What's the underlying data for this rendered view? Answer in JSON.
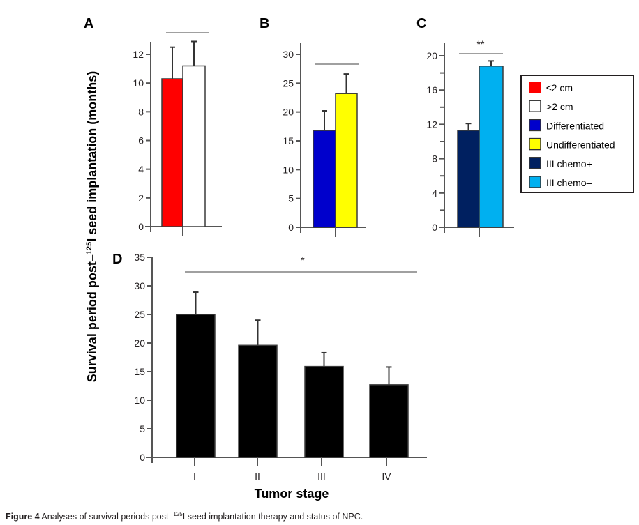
{
  "figure": {
    "y_axis_title": "Survival period post–",
    "y_axis_title_sup": "125",
    "y_axis_title_rest": "I seed implantation (months)",
    "caption_label": "Figure 4",
    "caption_text_pre": " Analyses of survival periods post–",
    "caption_sup": "125",
    "caption_text_post": "I seed implantation therapy and status of NPC."
  },
  "legend": {
    "items": [
      {
        "label": "≤2 cm",
        "color": "#ff0000",
        "text_color": "#000000"
      },
      {
        "label": ">2 cm",
        "color": "#ffffff",
        "text_color": "#ff0000"
      },
      {
        "label": "Differentiated",
        "color": "#0000cc",
        "text_color": "#000000"
      },
      {
        "label": "Undifferentiated",
        "color": "#ffff00",
        "text_color": "#000000"
      },
      {
        "label": "III chemo+",
        "color": "#002060",
        "text_color": "#000000"
      },
      {
        "label": "III chemo–",
        "color": "#00b0f0",
        "text_color": "#000000"
      }
    ]
  },
  "chart_data": [
    {
      "panel": "A",
      "type": "bar",
      "title": "A",
      "ylabel": "Survival period post–125I seed implantation (months)",
      "ylim": [
        0,
        12
      ],
      "yticks": [
        0,
        2,
        4,
        6,
        8,
        10,
        12
      ],
      "series": [
        {
          "name": "≤2 cm",
          "value": 10.3,
          "error_upper": 12.5,
          "color": "#ff0000"
        },
        {
          "name": ">2 cm",
          "value": 11.2,
          "error_upper": 12.9,
          "color": "#ffffff"
        }
      ],
      "significance": ""
    },
    {
      "panel": "B",
      "type": "bar",
      "title": "B",
      "ylim": [
        0,
        30
      ],
      "yticks": [
        0,
        5,
        10,
        15,
        20,
        25,
        30
      ],
      "series": [
        {
          "name": "Differentiated",
          "value": 16.8,
          "error_upper": 20.2,
          "color": "#0000cc"
        },
        {
          "name": "Undifferentiated",
          "value": 23.2,
          "error_upper": 26.6,
          "color": "#ffff00"
        }
      ],
      "significance": ""
    },
    {
      "panel": "C",
      "type": "bar",
      "title": "C",
      "ylim": [
        0,
        20
      ],
      "yticks": [
        0,
        4,
        8,
        12,
        16,
        20
      ],
      "series": [
        {
          "name": "III chemo+",
          "value": 11.3,
          "error_upper": 12.1,
          "color": "#002060"
        },
        {
          "name": "III chemo–",
          "value": 18.8,
          "error_upper": 19.4,
          "color": "#00b0f0"
        }
      ],
      "significance": "**"
    },
    {
      "panel": "D",
      "type": "bar",
      "title": "D",
      "xlabel": "Tumor stage",
      "ylim": [
        0,
        35
      ],
      "yticks": [
        0,
        5,
        10,
        15,
        20,
        25,
        30,
        35
      ],
      "categories": [
        "I",
        "II",
        "III",
        "IV"
      ],
      "values": [
        25.0,
        19.6,
        15.9,
        12.7
      ],
      "error_upper": [
        28.9,
        24.0,
        18.3,
        15.8
      ],
      "color": "#000000",
      "significance": "*"
    }
  ]
}
